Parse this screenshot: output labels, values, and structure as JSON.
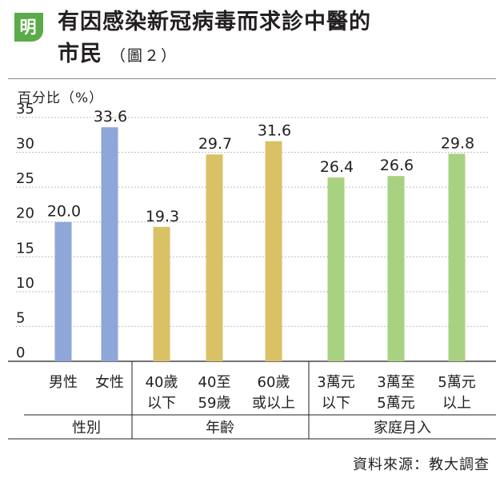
{
  "header": {
    "logo_char": "明",
    "title_line1": "有因感染新冠病毒而求診中醫的",
    "title_line2": "市民",
    "subtitle": "（圖２）"
  },
  "footer": {
    "source": "資料來源：教大調查"
  },
  "colors": {
    "blue": "#8fa6d8",
    "gold": "#d9c266",
    "green": "#a9d182",
    "logo_green": "#5aab4a"
  },
  "chart_data": {
    "type": "bar",
    "ylabel": "百分比（%）",
    "ylim": [
      0,
      35
    ],
    "yticks": [
      0,
      5,
      10,
      15,
      20,
      25,
      30,
      35
    ],
    "grid": true,
    "categories": [
      "男性",
      "女性",
      "40歲\n以下",
      "40至\n59歲",
      "60歲\n或以上",
      "3萬元\n以下",
      "3萬至\n5萬元",
      "5萬元\n以上"
    ],
    "values": [
      20.0,
      33.6,
      19.3,
      29.7,
      31.6,
      26.4,
      26.6,
      29.8
    ],
    "value_labels": [
      "20.0",
      "33.6",
      "19.3",
      "29.7",
      "31.6",
      "26.4",
      "26.6",
      "29.8"
    ],
    "groups": [
      {
        "label": "性別",
        "color": "#8fa6d8",
        "start": 0,
        "end": 1
      },
      {
        "label": "年齡",
        "color": "#d9c266",
        "start": 2,
        "end": 4
      },
      {
        "label": "家庭月入",
        "color": "#a9d182",
        "start": 5,
        "end": 7
      }
    ]
  }
}
